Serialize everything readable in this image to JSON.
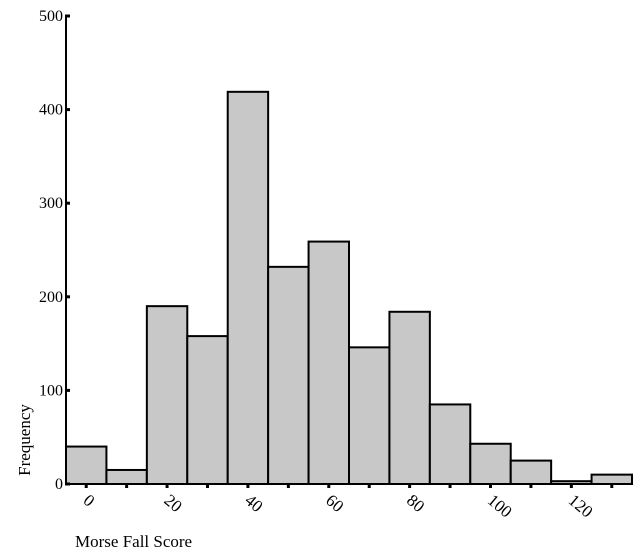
{
  "chart_data": {
    "type": "bar",
    "title": "",
    "xlabel": "Morse Fall Score",
    "ylabel": "Frequency",
    "bin_width": 10,
    "bins": [
      {
        "start": -5,
        "end": 5,
        "value": 40
      },
      {
        "start": 5,
        "end": 15,
        "value": 15
      },
      {
        "start": 15,
        "end": 25,
        "value": 190
      },
      {
        "start": 25,
        "end": 35,
        "value": 158
      },
      {
        "start": 35,
        "end": 45,
        "value": 419
      },
      {
        "start": 45,
        "end": 55,
        "value": 232
      },
      {
        "start": 55,
        "end": 65,
        "value": 259
      },
      {
        "start": 65,
        "end": 75,
        "value": 146
      },
      {
        "start": 75,
        "end": 85,
        "value": 184
      },
      {
        "start": 85,
        "end": 95,
        "value": 85
      },
      {
        "start": 95,
        "end": 105,
        "value": 43
      },
      {
        "start": 105,
        "end": 115,
        "value": 25
      },
      {
        "start": 115,
        "end": 125,
        "value": 3
      },
      {
        "start": 125,
        "end": 135,
        "value": 10
      }
    ],
    "xlim": [
      -5,
      135
    ],
    "ylim": [
      0,
      500
    ],
    "x_ticks": [
      0,
      20,
      40,
      60,
      80,
      100,
      120
    ],
    "y_ticks": [
      0,
      100,
      200,
      300,
      400,
      500
    ],
    "grid": false,
    "legend": "none",
    "colors": {
      "bar_fill": "#c8c8c8",
      "bar_edge": "#000000"
    }
  }
}
